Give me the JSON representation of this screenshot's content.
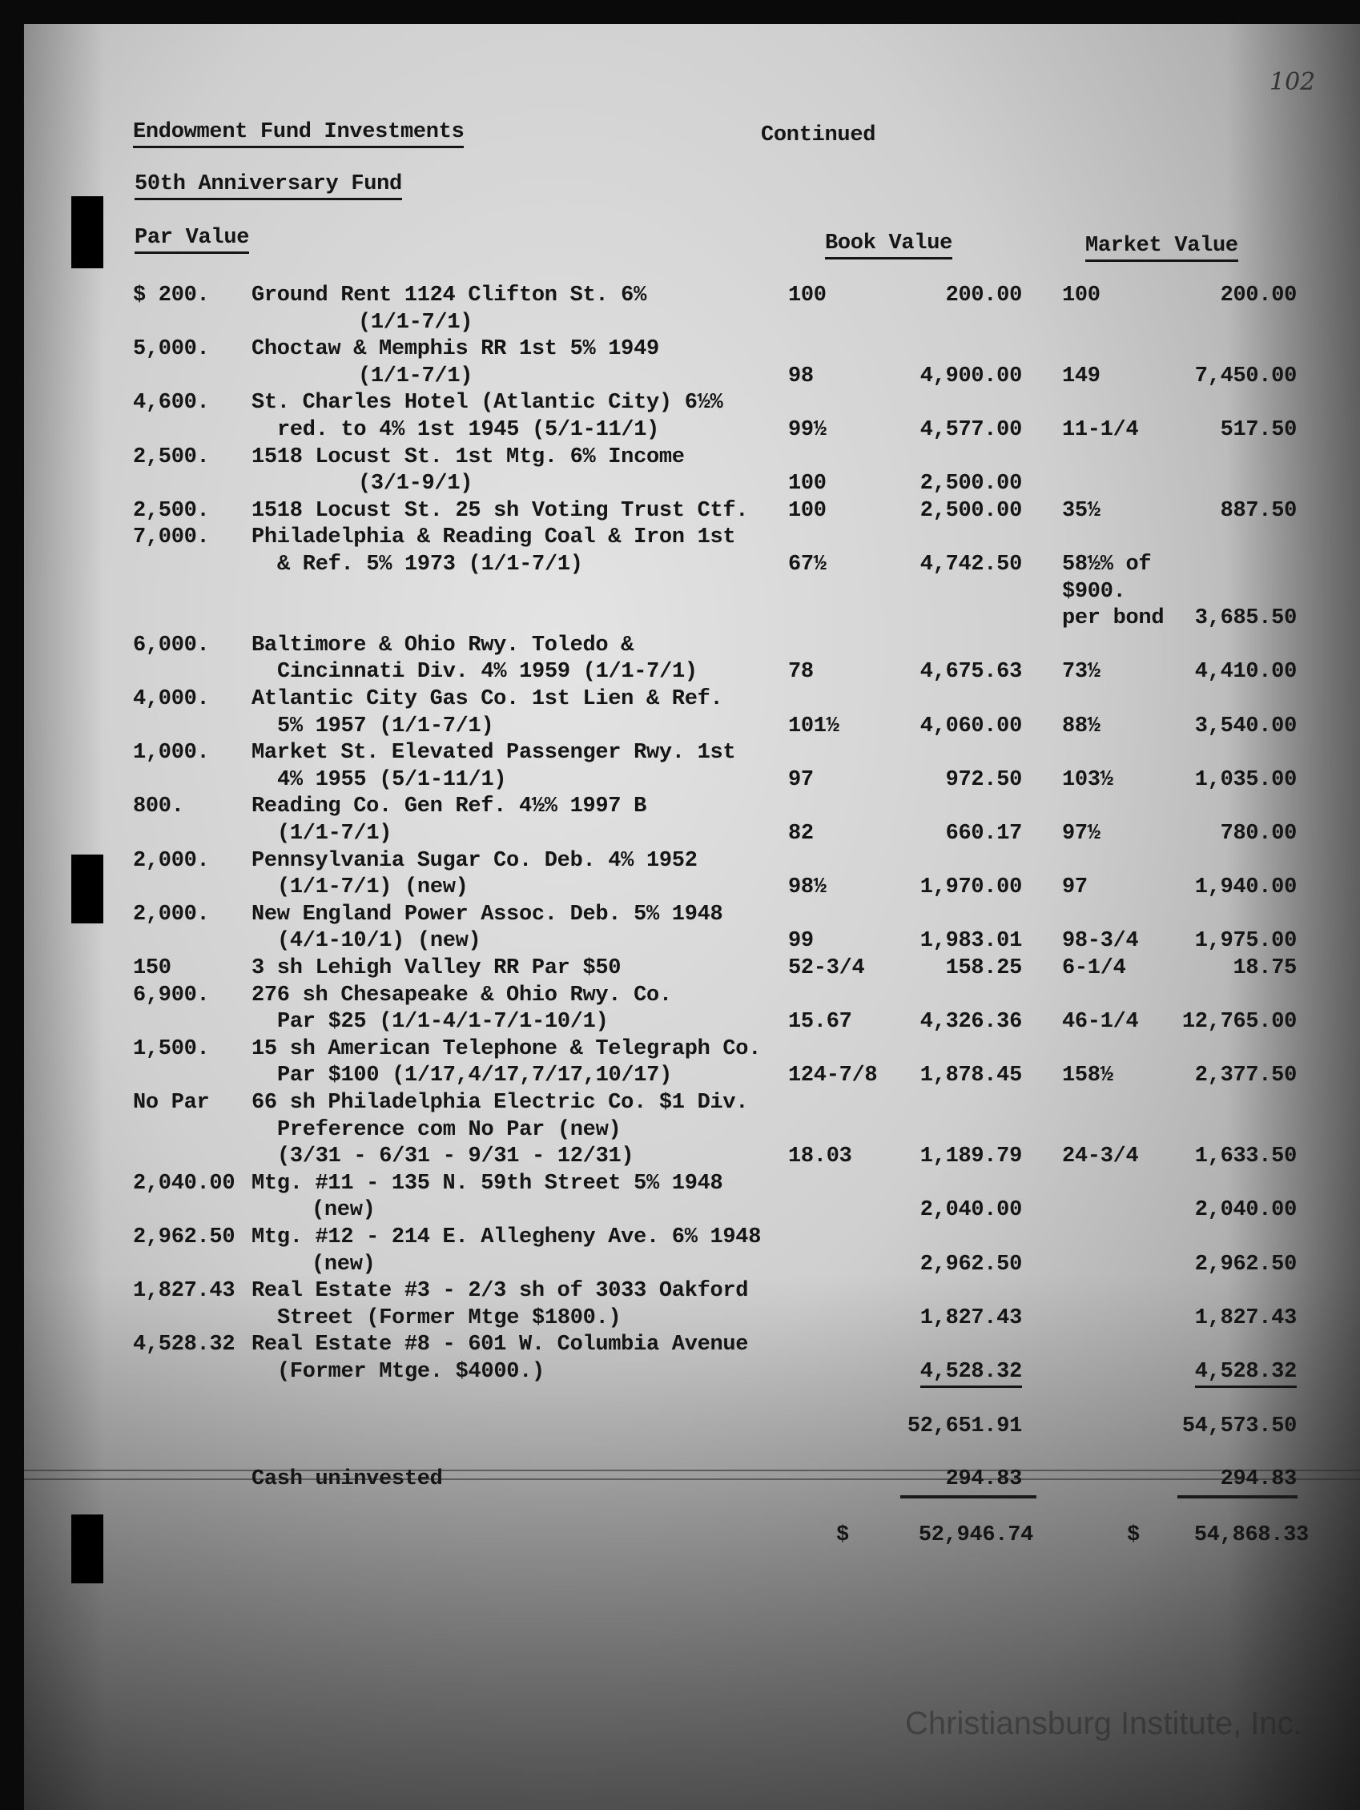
{
  "header": {
    "title": "Endowment Fund Investments",
    "continued": "Continued",
    "subtitle": "50th Anniversary Fund",
    "page_number": "102",
    "col_par": "Par Value",
    "col_book": "Book Value",
    "col_market": "Market Value"
  },
  "lines": [
    {
      "par": "$ 200.",
      "desc": "Ground Rent 1124 Clifton St. 6%",
      "bp": "100",
      "bv": "200.00",
      "mp": "100",
      "mv": "200.00"
    },
    {
      "desc": "(1/1-7/1)",
      "indent": "deep"
    },
    {
      "par": "5,000.",
      "desc": "Choctaw & Memphis RR 1st 5% 1949"
    },
    {
      "desc": "(1/1-7/1)",
      "indent": "deep",
      "bp": "98",
      "bv": "4,900.00",
      "mp": "149",
      "mv": "7,450.00"
    },
    {
      "par": "4,600.",
      "desc": "St. Charles Hotel (Atlantic City) 6½%"
    },
    {
      "desc": "red. to 4% 1st 1945 (5/1-11/1)",
      "indent": "sub",
      "bp": "99½",
      "bv": "4,577.00",
      "mp": "11-1/4",
      "mv": "517.50"
    },
    {
      "par": "2,500.",
      "desc": "1518 Locust St. 1st Mtg. 6% Income"
    },
    {
      "desc": "(3/1-9/1)",
      "indent": "deep",
      "bp": "100",
      "bv": "2,500.00"
    },
    {
      "par": "2,500.",
      "desc": "1518 Locust St. 25 sh Voting Trust Ctf.",
      "bp": "100",
      "bv": "2,500.00",
      "mp": "35½",
      "mv": "887.50"
    },
    {
      "par": "7,000.",
      "desc": "Philadelphia & Reading Coal & Iron 1st"
    },
    {
      "desc": "& Ref. 5% 1973 (1/1-7/1)",
      "indent": "sub",
      "bp": "67½",
      "bv": "4,742.50",
      "mp": "58½% of"
    },
    {
      "mp": "$900."
    },
    {
      "mp": "per bond",
      "mv": "3,685.50"
    },
    {
      "par": "6,000.",
      "desc": "Baltimore & Ohio Rwy. Toledo &"
    },
    {
      "desc": "Cincinnati Div. 4% 1959 (1/1-7/1)",
      "indent": "sub",
      "bp": "78",
      "bv": "4,675.63",
      "mp": "73½",
      "mv": "4,410.00"
    },
    {
      "par": "4,000.",
      "desc": "Atlantic City Gas Co. 1st Lien & Ref."
    },
    {
      "desc": "5% 1957 (1/1-7/1)",
      "indent": "sub",
      "bp": "101½",
      "bv": "4,060.00",
      "mp": "88½",
      "mv": "3,540.00"
    },
    {
      "par": "1,000.",
      "desc": "Market St. Elevated Passenger Rwy. 1st"
    },
    {
      "desc": "4% 1955 (5/1-11/1)",
      "indent": "sub",
      "bp": "97",
      "bv": "972.50",
      "mp": "103½",
      "mv": "1,035.00"
    },
    {
      "par": "800.",
      "desc": "Reading Co. Gen Ref. 4½% 1997 B"
    },
    {
      "desc": "(1/1-7/1)",
      "indent": "sub",
      "bp": "82",
      "bv": "660.17",
      "mp": "97½",
      "mv": "780.00"
    },
    {
      "par": "2,000.",
      "desc": "Pennsylvania Sugar Co. Deb. 4% 1952"
    },
    {
      "desc": "(1/1-7/1) (new)",
      "indent": "sub",
      "bp": "98½",
      "bv": "1,970.00",
      "mp": "97",
      "mv": "1,940.00"
    },
    {
      "par": "2,000.",
      "desc": "New England Power Assoc. Deb. 5% 1948"
    },
    {
      "desc": "(4/1-10/1) (new)",
      "indent": "sub",
      "bp": "99",
      "bv": "1,983.01",
      "mp": "98-3/4",
      "mv": "1,975.00"
    },
    {
      "par": "150",
      "desc": "3 sh Lehigh Valley RR Par $50",
      "bp": "52-3/4",
      "bv": "158.25",
      "mp": "6-1/4",
      "mv": "18.75"
    },
    {
      "par": "6,900.",
      "desc": "276 sh Chesapeake & Ohio Rwy. Co."
    },
    {
      "desc": "Par $25 (1/1-4/1-7/1-10/1)",
      "indent": "sub",
      "bp": "15.67",
      "bv": "4,326.36",
      "mp": "46-1/4",
      "mv": "12,765.00"
    },
    {
      "par": "1,500.",
      "desc": "15 sh American Telephone & Telegraph Co."
    },
    {
      "desc": "Par $100 (1/17,4/17,7/17,10/17)",
      "indent": "sub",
      "bp": "124-7/8",
      "bv": "1,878.45",
      "mp": "158½",
      "mv": "2,377.50"
    },
    {
      "par": "No Par",
      "desc": "66 sh Philadelphia Electric Co. $1 Div."
    },
    {
      "desc": "Preference com No Par (new)",
      "indent": "sub"
    },
    {
      "desc": "(3/31 - 6/31 - 9/31 - 12/31)",
      "indent": "sub",
      "bp": "18.03",
      "bv": "1,189.79",
      "mp": "24-3/4",
      "mv": "1,633.50"
    },
    {
      "par": "2,040.00",
      "desc": "Mtg. #11 - 135 N. 59th Street 5% 1948"
    },
    {
      "desc": "(new)",
      "indent": "sub2",
      "bv": "2,040.00",
      "mv": "2,040.00"
    },
    {
      "par": "2,962.50",
      "desc": "Mtg. #12 - 214 E. Allegheny Ave. 6% 1948"
    },
    {
      "desc": "(new)",
      "indent": "sub2",
      "bv": "2,962.50",
      "mv": "2,962.50"
    },
    {
      "par": "1,827.43",
      "desc": "Real Estate #3 - 2/3 sh of 3033 Oakford"
    },
    {
      "desc": "Street (Former Mtge $1800.)",
      "indent": "sub",
      "bv": "1,827.43",
      "mv": "1,827.43"
    },
    {
      "par": "4,528.32",
      "desc": "Real Estate #8 - 601 W. Columbia Avenue"
    },
    {
      "desc": "(Former Mtge. $4000.)",
      "indent": "sub",
      "bv": "4,528.32",
      "mv": "4,528.32"
    }
  ],
  "totals": {
    "subtotal_book": "52,651.91",
    "subtotal_market": "54,573.50",
    "cash_label": "Cash uninvested",
    "cash_book": "294.83",
    "cash_market": "294.83",
    "dollar_sign": "$",
    "grand_book": "52,946.74",
    "grand_market": "54,868.33"
  },
  "watermark": "Christiansburg Institute, Inc."
}
